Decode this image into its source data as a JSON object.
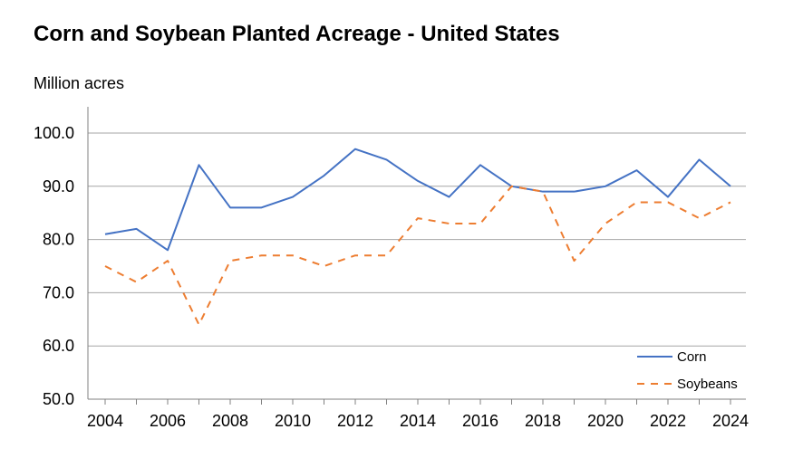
{
  "chart_data": {
    "type": "line",
    "title": "Corn and Soybean Planted Acreage - United States",
    "ylabel": "Million acres",
    "xlabel": "",
    "x": [
      2004,
      2005,
      2006,
      2007,
      2008,
      2009,
      2010,
      2011,
      2012,
      2013,
      2014,
      2015,
      2016,
      2017,
      2018,
      2019,
      2020,
      2021,
      2022,
      2023,
      2024
    ],
    "x_ticks": [
      "2004",
      "2006",
      "2008",
      "2010",
      "2012",
      "2014",
      "2016",
      "2018",
      "2020",
      "2022",
      "2024"
    ],
    "y_ticks": [
      "50.0",
      "60.0",
      "70.0",
      "80.0",
      "90.0",
      "100.0"
    ],
    "ylim": [
      50,
      100
    ],
    "grid": true,
    "legend_position": "bottom-right",
    "series": [
      {
        "name": "Corn",
        "color": "#4472C4",
        "style": "solid",
        "values": [
          81,
          82,
          78,
          94,
          86,
          86,
          88,
          92,
          97,
          95,
          91,
          88,
          94,
          90,
          89,
          89,
          90,
          93,
          88,
          95,
          90
        ]
      },
      {
        "name": "Soybeans",
        "color": "#ED7D31",
        "style": "dashed",
        "values": [
          75,
          72,
          76,
          64,
          76,
          77,
          77,
          75,
          77,
          77,
          84,
          83,
          83,
          90,
          89,
          76,
          83,
          87,
          87,
          84,
          87
        ]
      }
    ]
  },
  "colors": {
    "grid": "#a6a6a6",
    "axis": "#808080"
  }
}
